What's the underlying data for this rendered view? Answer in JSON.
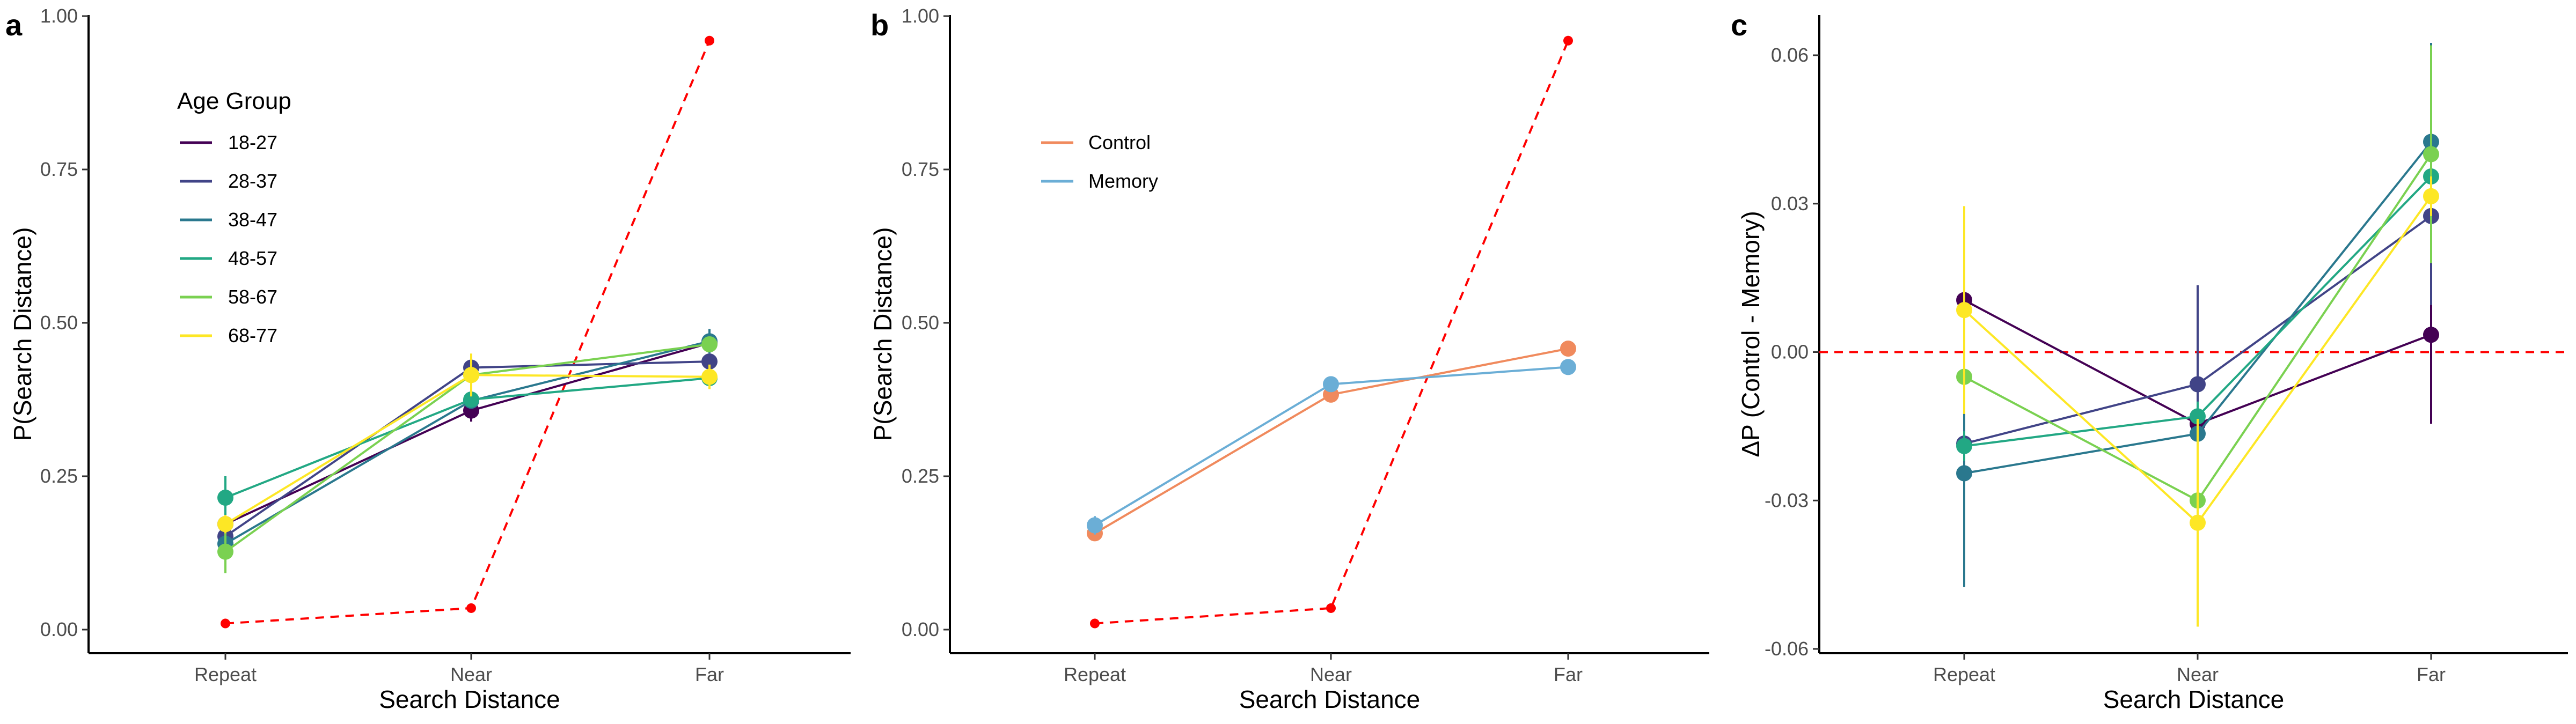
{
  "chart_data": [
    {
      "panel": "a",
      "type": "line",
      "xlabel": "Search Distance",
      "ylabel": "P(Search Distance)",
      "categories": [
        "Repeat",
        "Near",
        "Far"
      ],
      "ylim": [
        0,
        1
      ],
      "yticks": [
        "0.00",
        "0.25",
        "0.50",
        "0.75",
        "1.00"
      ],
      "ytick_values": [
        0,
        0.25,
        0.5,
        0.75,
        1.0
      ],
      "grid": false,
      "legend": {
        "title": "Age Group",
        "position": "top-left"
      },
      "series": [
        {
          "name": "18-27",
          "color": "#440154",
          "values": [
            0.172,
            0.357,
            0.467
          ],
          "err": [
            0.01,
            0.018,
            0.012
          ]
        },
        {
          "name": "28-37",
          "color": "#414487",
          "values": [
            0.152,
            0.427,
            0.437
          ],
          "err": [
            0.01,
            0.012,
            0.012
          ]
        },
        {
          "name": "38-47",
          "color": "#2a788e",
          "values": [
            0.14,
            0.373,
            0.47
          ],
          "err": [
            0.01,
            0.012,
            0.02
          ]
        },
        {
          "name": "48-57",
          "color": "#22a884",
          "values": [
            0.215,
            0.375,
            0.41
          ],
          "err": [
            0.035,
            0.012,
            0.012
          ]
        },
        {
          "name": "58-67",
          "color": "#7ad151",
          "values": [
            0.127,
            0.415,
            0.465
          ],
          "err": [
            0.035,
            0.015,
            0.012
          ]
        },
        {
          "name": "68-77",
          "color": "#fde725",
          "values": [
            0.172,
            0.415,
            0.412
          ],
          "err": [
            0.015,
            0.035,
            0.02
          ]
        }
      ],
      "reference": {
        "color": "#ff0000",
        "style": "dashed",
        "values": [
          0.01,
          0.035,
          0.96
        ]
      }
    },
    {
      "panel": "b",
      "type": "line",
      "xlabel": "Search Distance",
      "ylabel": "P(Search Distance)",
      "categories": [
        "Repeat",
        "Near",
        "Far"
      ],
      "ylim": [
        0,
        1
      ],
      "yticks": [
        "0.00",
        "0.25",
        "0.50",
        "0.75",
        "1.00"
      ],
      "ytick_values": [
        0,
        0.25,
        0.5,
        0.75,
        1.0
      ],
      "grid": false,
      "legend": {
        "position": "top-left"
      },
      "series": [
        {
          "name": "Control",
          "color": "#f08a5d",
          "values": [
            0.157,
            0.383,
            0.458
          ],
          "err": [
            0.012,
            0.008,
            0.008
          ]
        },
        {
          "name": "Memory",
          "color": "#6baed6",
          "values": [
            0.17,
            0.4,
            0.428
          ],
          "err": [
            0.015,
            0.01,
            0.008
          ]
        }
      ],
      "reference": {
        "color": "#ff0000",
        "style": "dashed",
        "values": [
          0.01,
          0.035,
          0.96
        ]
      }
    },
    {
      "panel": "c",
      "type": "line",
      "xlabel": "Search Distance",
      "ylabel": "ΔP (Control - Memory)",
      "categories": [
        "Repeat",
        "Near",
        "Far"
      ],
      "ylim": [
        -0.06,
        0.06
      ],
      "yticks": [
        "-0.06",
        "-0.03",
        "0.00",
        "0.03",
        "0.06"
      ],
      "ytick_values": [
        -0.06,
        -0.03,
        0.0,
        0.03,
        0.06
      ],
      "grid": false,
      "reference_line": {
        "y": 0,
        "color": "#ff0000",
        "style": "dashed"
      },
      "series": [
        {
          "name": "18-27",
          "color": "#440154",
          "values": [
            0.0105,
            -0.0145,
            0.0035
          ],
          "err": [
            0.003,
            0.003,
            0.018
          ]
        },
        {
          "name": "28-37",
          "color": "#414487",
          "values": [
            -0.0185,
            -0.0065,
            0.0275
          ],
          "err": [
            0.003,
            0.02,
            0.018
          ]
        },
        {
          "name": "38-47",
          "color": "#2a788e",
          "values": [
            -0.0245,
            -0.0165,
            0.0425
          ],
          "err": [
            0.023,
            0.004,
            0.02
          ]
        },
        {
          "name": "48-57",
          "color": "#22a884",
          "values": [
            -0.019,
            -0.013,
            0.0355
          ],
          "err": [
            0.003,
            0.003,
            0.003
          ]
        },
        {
          "name": "58-67",
          "color": "#7ad151",
          "values": [
            -0.005,
            -0.03,
            0.04
          ],
          "err": [
            0.003,
            0.003,
            0.022
          ]
        },
        {
          "name": "68-77",
          "color": "#fde725",
          "values": [
            0.0085,
            -0.0345,
            0.0315
          ],
          "err": [
            0.021,
            0.021,
            0.004
          ]
        }
      ]
    }
  ]
}
